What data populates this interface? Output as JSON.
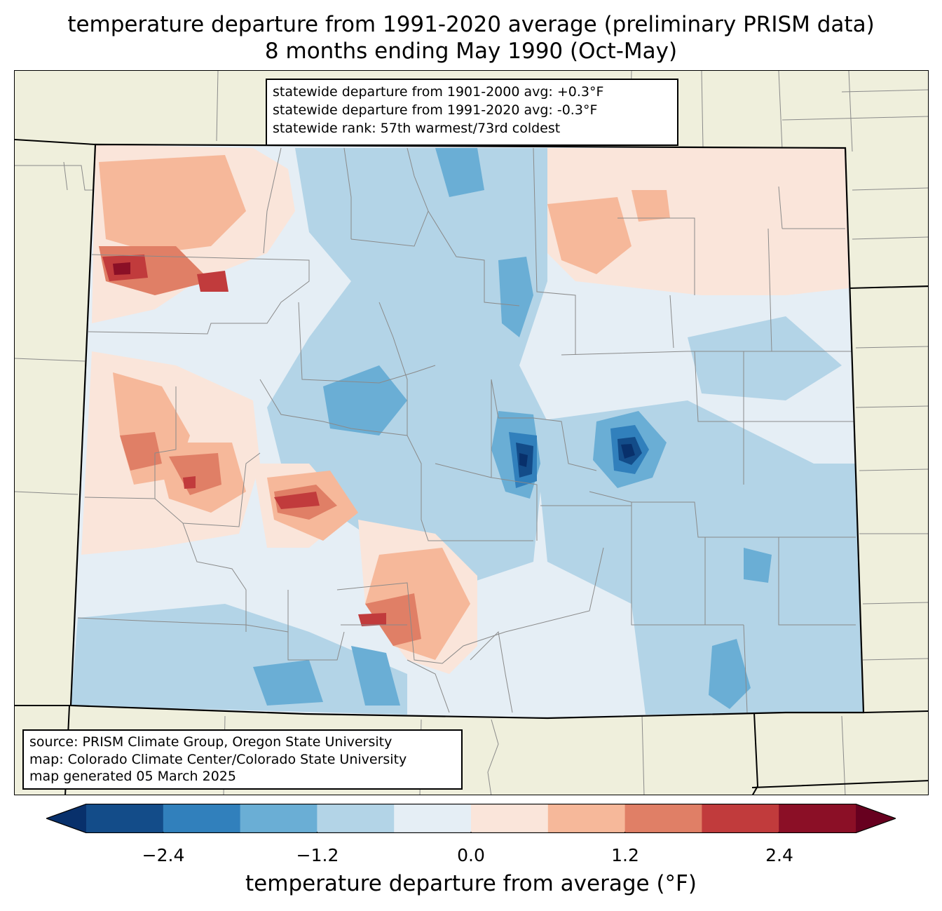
{
  "title": {
    "line1": "temperature departure from 1991-2020 average (preliminary PRISM data)",
    "line2": "8 months ending May 1990 (Oct-May)"
  },
  "stats_box": {
    "line1": "statewide departure from 1901-2000 avg: +0.3°F",
    "line2": "statewide departure from 1991-2020 avg: -0.3°F",
    "line3": "statewide rank: 57th warmest/73rd coldest"
  },
  "source_box": {
    "line1": "source: PRISM Climate Group, Oregon State University",
    "line2": "map: Colorado Climate Center/Colorado State University",
    "line3": "map generated 05 March 2025"
  },
  "colorbar": {
    "label": "temperature departure from average (°F)",
    "ticks": [
      "−2.4",
      "−1.2",
      "0.0",
      "1.2",
      "2.4"
    ],
    "bins": [
      -3.0,
      -2.4,
      -1.8,
      -1.2,
      -0.6,
      0.0,
      0.6,
      1.2,
      1.8,
      2.4,
      3.0
    ],
    "colors": [
      "#08306b",
      "#134c89",
      "#3180bc",
      "#6aaed5",
      "#b3d4e7",
      "#e5eef5",
      "#fae5da",
      "#f6b89a",
      "#e07f66",
      "#c13b3c",
      "#8b0f26",
      "#67001f"
    ]
  },
  "map": {
    "land_color": "#efefdc",
    "state": "Colorado"
  }
}
